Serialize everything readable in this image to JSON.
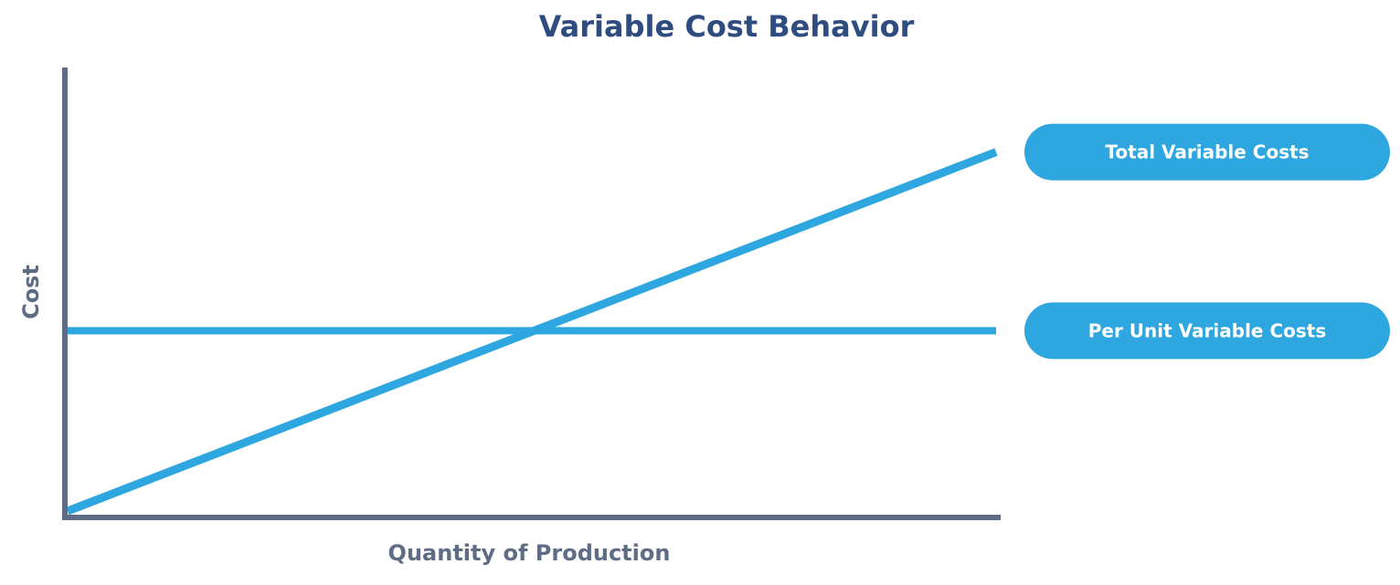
{
  "chart_data": {
    "type": "line",
    "title": "Variable Cost Behavior",
    "xlabel": "Quantity of Production",
    "ylabel": "Cost",
    "x": [
      0,
      1
    ],
    "xlim": [
      0,
      1
    ],
    "ylim": [
      0,
      1
    ],
    "grid": false,
    "legend": "right",
    "series": [
      {
        "name": "Total Variable Costs",
        "values": [
          0,
          0.89
        ]
      },
      {
        "name": "Per Unit Variable Costs",
        "values": [
          0.447,
          0.447
        ]
      }
    ]
  },
  "colors": {
    "title": "#2f4c80",
    "axis": "#5f6c86",
    "series": "#2ea6df",
    "legend_text": "#ffffff"
  }
}
